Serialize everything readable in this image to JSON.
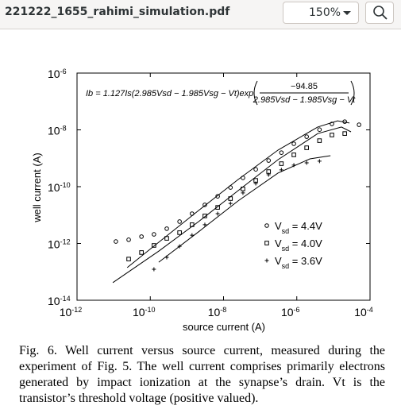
{
  "toolbar": {
    "filename": "221222_1655_rahimi_simulation.pdf",
    "zoom": "150%"
  },
  "chart_data": {
    "type": "scatter",
    "xlabel": "source current (A)",
    "ylabel": "well current (A)",
    "annotation": {
      "lhs": "Ib = 1.127Is(2.985Vsd − 1.985Vsg − Vt)exp",
      "numerator": "−94.85",
      "denominator": "2.985Vsd − 1.985Vsg − Vt"
    },
    "log_x": true,
    "log_y": true,
    "xlim": [
      1e-12,
      0.0001
    ],
    "ylim": [
      1e-14,
      1e-06
    ],
    "xticks": [
      {
        "value": 1e-12,
        "label": "10-12"
      },
      {
        "value": 1e-10,
        "label": "10-10"
      },
      {
        "value": 1e-08,
        "label": "10-8"
      },
      {
        "value": 1e-06,
        "label": "10-6"
      },
      {
        "value": 0.0001,
        "label": "10-4"
      }
    ],
    "yticks": [
      {
        "value": 1e-14,
        "label": "10-14"
      },
      {
        "value": 1e-12,
        "label": "10-12"
      },
      {
        "value": 1e-10,
        "label": "10-10"
      },
      {
        "value": 1e-08,
        "label": "10-8"
      },
      {
        "value": 1e-06,
        "label": "10-6"
      }
    ],
    "series": [
      {
        "name": "Vsd = 4.4V",
        "marker": "circle",
        "color": "#000000",
        "x": [
          1.15e-11,
          2.57e-11,
          5.75e-11,
          1.26e-10,
          2.82e-10,
          6.31e-10,
          1.38e-09,
          3.09e-09,
          6.92e-09,
          1.55e-08,
          3.39e-08,
          7.59e-08,
          1.7e-07,
          3.8e-07,
          8.32e-07,
          1.86e-06,
          4.17e-06,
          9.12e-06,
          2.04e-05,
          5.01e-05
        ],
        "values": [
          1.17e-12,
          1.35e-12,
          1.74e-12,
          2.09e-12,
          3.31e-12,
          5.89e-12,
          1.12e-11,
          2.29e-11,
          4.57e-11,
          9.33e-11,
          2.04e-10,
          4.07e-10,
          8.32e-10,
          1.58e-09,
          3.24e-09,
          5.75e-09,
          1.02e-08,
          1.62e-08,
          1.95e-08,
          1.51e-08
        ]
      },
      {
        "name": "Vsd = 4.0V",
        "marker": "square",
        "color": "#000000",
        "x": [
          2.57e-11,
          5.75e-11,
          1.26e-10,
          2.82e-10,
          6.31e-10,
          1.38e-09,
          3.09e-09,
          6.92e-09,
          1.55e-08,
          3.39e-08,
          7.59e-08,
          1.7e-07,
          3.8e-07,
          8.32e-07,
          1.86e-06,
          4.17e-06,
          9.12e-06,
          2.04e-05
        ],
        "values": [
          2.82e-13,
          4.79e-13,
          8.51e-13,
          1.51e-12,
          2.4e-12,
          4.57e-12,
          9.33e-12,
          1.86e-11,
          3.8e-11,
          8.32e-11,
          1.66e-10,
          3.39e-10,
          6.46e-10,
          1.32e-09,
          2.34e-09,
          4.17e-09,
          6.61e-09,
          7.41e-09
        ]
      },
      {
        "name": "Vsd = 3.6V",
        "marker": "plus",
        "color": "#000000",
        "x": [
          1.26e-10,
          2.82e-10,
          6.31e-10,
          1.38e-09,
          3.09e-09,
          6.92e-09,
          1.55e-08,
          3.39e-08,
          7.59e-08,
          1.7e-07,
          3.8e-07,
          8.32e-07,
          1.86e-06,
          4.17e-06
        ],
        "values": [
          1.23e-13,
          3.24e-13,
          7.94e-13,
          1.95e-12,
          4.57e-12,
          1.12e-11,
          2.57e-11,
          6.03e-11,
          1.29e-10,
          2.63e-10,
          3.89e-10,
          5.75e-10,
          6.92e-10,
          7.94e-10
        ]
      }
    ],
    "fits": [
      {
        "x": [
          2.34e-11,
          1.7e-10,
          2.09e-09,
          2.51e-08,
          3.09e-07,
          3.72e-06,
          1.3e-05,
          2.75e-05
        ],
        "values": [
          1.41e-13,
          1.1e-12,
          1.45e-11,
          1.78e-10,
          1.95e-09,
          1.26e-08,
          2.09e-08,
          1.74e-08
        ]
      },
      {
        "x": [
          9.5e-12,
          1.7e-10,
          2.09e-09,
          2.51e-08,
          3.09e-07,
          3.72e-06,
          1.66e-05,
          3.02e-05
        ],
        "values": [
          4.17e-14,
          5.37e-13,
          5.89e-12,
          7.24e-11,
          8.91e-10,
          7.41e-09,
          1.26e-08,
          8.51e-09
        ]
      },
      {
        "x": [
          1.7e-10,
          2.09e-09,
          2.51e-08,
          3.09e-07,
          2.29e-06,
          8.32e-06
        ],
        "values": [
          2.19e-13,
          2.57e-12,
          3.16e-11,
          3.02e-10,
          9.55e-10,
          1.23e-09
        ]
      }
    ]
  },
  "caption": "Fig. 6. Well current versus source current, measured during the experiment of Fig. 5. The well current comprises primarily electrons generated by impact ionization at the synapse’s drain. Vt is the transistor’s threshold voltage (positive valued)."
}
